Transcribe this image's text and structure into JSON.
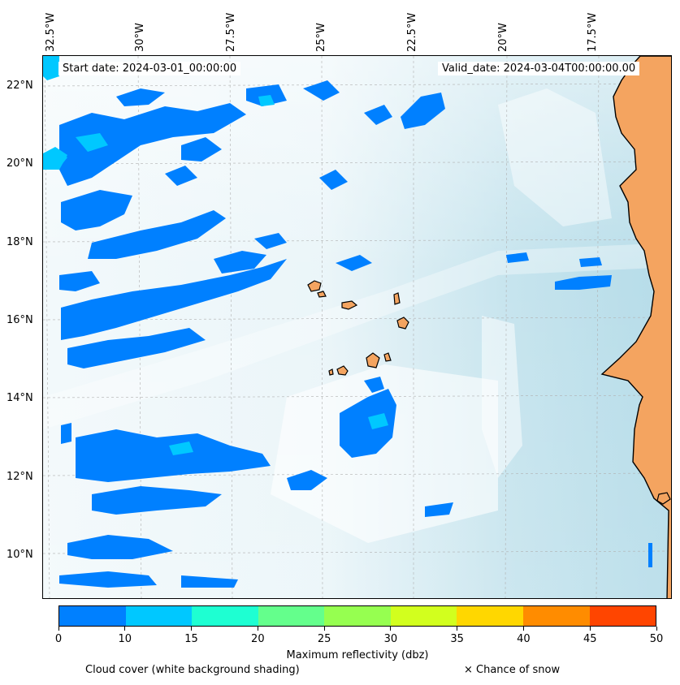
{
  "map": {
    "start_date": "Start date: 2024-03-01_00:00:00",
    "valid_date": "Valid_date: 2024-03-04T00:00:00.00",
    "longitude_labels": [
      "32.5°W",
      "30°W",
      "27.5°W",
      "25°W",
      "22.5°W",
      "20°W",
      "17.5°W"
    ],
    "latitude_labels": [
      "22°N",
      "20°N",
      "18°N",
      "16°N",
      "14°N",
      "12°N",
      "10°N"
    ],
    "colors": {
      "land": "#f4a460",
      "coastline": "#000000",
      "cloud_shading": "#add8e6",
      "gridline": "#b0b0b0"
    }
  },
  "colorbar": {
    "title": "Maximum reflectivity (dbz)",
    "tick_labels": [
      "0",
      "10",
      "15",
      "20",
      "25",
      "30",
      "35",
      "40",
      "45",
      "50"
    ],
    "colors": [
      "#0080ff",
      "#00c8ff",
      "#1effd2",
      "#64ff8c",
      "#96ff50",
      "#d2ff1e",
      "#ffd700",
      "#ff8c00",
      "#ff4500"
    ]
  },
  "legend": {
    "cloud_cover": "Cloud cover (white background shading)",
    "snow": "× Chance of snow"
  }
}
